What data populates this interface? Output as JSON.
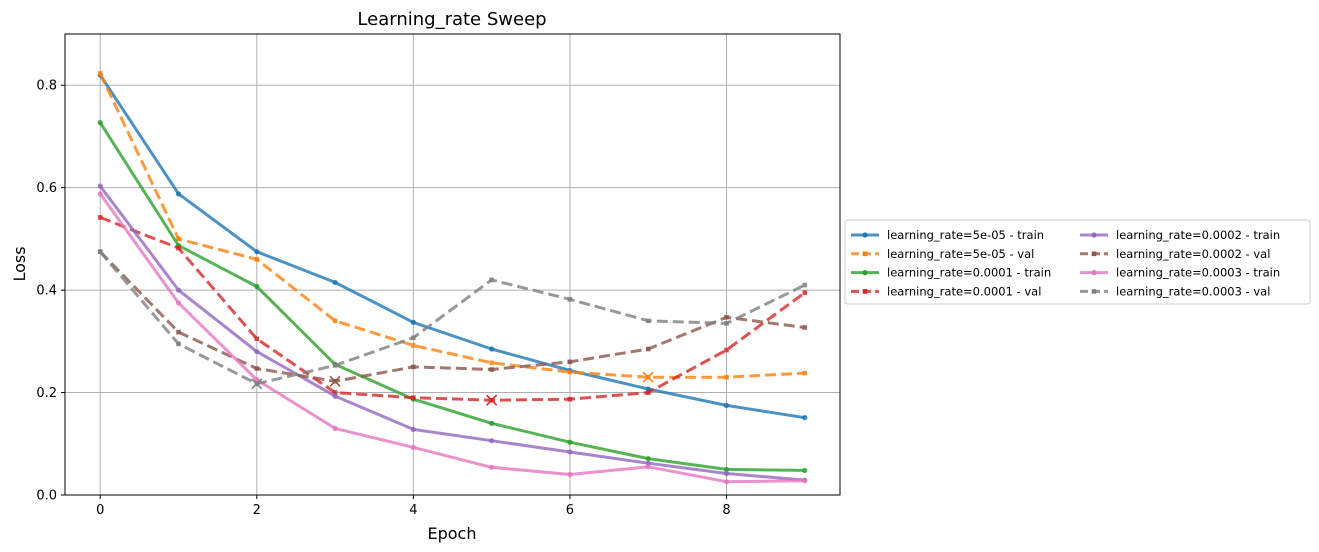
{
  "chart_data": {
    "type": "line",
    "title": "Learning_rate Sweep",
    "xlabel": "Epoch",
    "ylabel": "Loss",
    "xlim": [
      -0.45,
      9.45
    ],
    "ylim": [
      0,
      0.9
    ],
    "xticks": [
      0,
      2,
      4,
      6,
      8
    ],
    "yticks": [
      0.0,
      0.2,
      0.4,
      0.6,
      0.8
    ],
    "grid": true,
    "legend_placement": "right-outside",
    "x": [
      0,
      1,
      2,
      3,
      4,
      5,
      6,
      7,
      8,
      9
    ],
    "series": [
      {
        "name": "learning_rate=5e-05 - train",
        "color": "#1f77b4",
        "style": "solid",
        "values": [
          0.82,
          0.588,
          0.475,
          0.415,
          0.337,
          0.285,
          0.243,
          0.207,
          0.175,
          0.151
        ]
      },
      {
        "name": "learning_rate=5e-05 - val",
        "color": "#ff7f0e",
        "style": "dashed",
        "values": [
          0.823,
          0.5,
          0.46,
          0.34,
          0.292,
          0.258,
          0.24,
          0.23,
          0.23,
          0.238
        ],
        "best_epoch": 7
      },
      {
        "name": "learning_rate=0.0001 - train",
        "color": "#2ca02c",
        "style": "solid",
        "values": [
          0.727,
          0.487,
          0.407,
          0.255,
          0.187,
          0.14,
          0.103,
          0.071,
          0.05,
          0.048
        ]
      },
      {
        "name": "learning_rate=0.0001 - val",
        "color": "#d62728",
        "style": "dashed",
        "values": [
          0.542,
          0.482,
          0.305,
          0.2,
          0.19,
          0.185,
          0.187,
          0.2,
          0.283,
          0.395
        ],
        "best_epoch": 5
      },
      {
        "name": "learning_rate=0.0002 - train",
        "color": "#9467bd",
        "style": "solid",
        "values": [
          0.603,
          0.4,
          0.28,
          0.193,
          0.128,
          0.106,
          0.084,
          0.062,
          0.042,
          0.029
        ]
      },
      {
        "name": "learning_rate=0.0002 - val",
        "color": "#8c564b",
        "style": "dashed",
        "values": [
          0.475,
          0.318,
          0.247,
          0.222,
          0.25,
          0.245,
          0.26,
          0.285,
          0.347,
          0.327
        ],
        "best_epoch": 3
      },
      {
        "name": "learning_rate=0.0003 - train",
        "color": "#e377c2",
        "style": "solid",
        "values": [
          0.588,
          0.375,
          0.225,
          0.13,
          0.093,
          0.054,
          0.04,
          0.055,
          0.026,
          0.028
        ]
      },
      {
        "name": "learning_rate=0.0003 - val",
        "color": "#7f7f7f",
        "style": "dashed",
        "values": [
          0.475,
          0.295,
          0.217,
          0.253,
          0.307,
          0.42,
          0.382,
          0.34,
          0.335,
          0.41
        ],
        "best_epoch": 2
      }
    ]
  }
}
